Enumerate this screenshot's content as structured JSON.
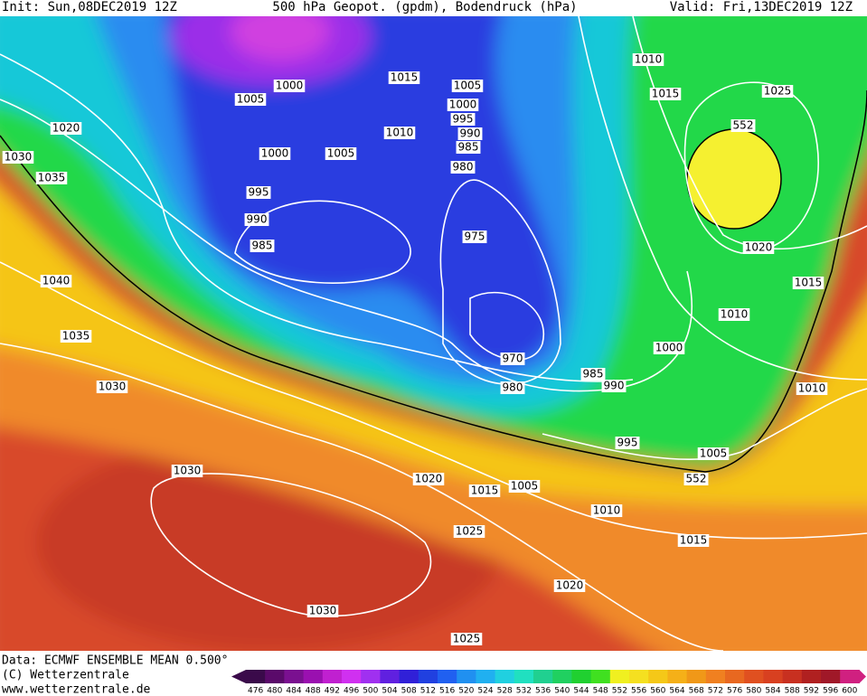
{
  "header": {
    "init": "Init: Sun,08DEC2019 12Z",
    "title": "500 hPa Geopot. (gpdm), Bodendruck (hPa)",
    "valid": "Valid: Fri,13DEC2019 12Z"
  },
  "isobar_labels": [
    1000,
    1005,
    1015,
    1005,
    1000,
    995,
    990,
    985,
    980,
    1010,
    1005,
    1000,
    1020,
    1030,
    1035,
    995,
    990,
    985,
    975,
    970,
    980,
    985,
    990,
    1000,
    1010,
    1015,
    1025,
    552,
    1020,
    1015,
    1010,
    1040,
    1035,
    1030,
    1010,
    1030,
    1020,
    1015,
    1005,
    995,
    1005,
    552,
    1010,
    1015,
    1025,
    1020,
    1030,
    1025
  ],
  "colorbar": {
    "levels": [
      476,
      480,
      484,
      488,
      492,
      496,
      500,
      504,
      508,
      512,
      516,
      520,
      524,
      528,
      532,
      536,
      540,
      544,
      548,
      552,
      556,
      560,
      564,
      568,
      572,
      576,
      580,
      584,
      588,
      592,
      596,
      600
    ],
    "colors": [
      "#3a0a4a",
      "#5a0a6a",
      "#7a1090",
      "#9a10b0",
      "#c020d0",
      "#d030f0",
      "#a030f0",
      "#6020e0",
      "#3020d8",
      "#2040e0",
      "#2060f0",
      "#2090f0",
      "#20b0f0",
      "#20d0e0",
      "#20e0c0",
      "#20d090",
      "#20d060",
      "#20d030",
      "#40e020",
      "#f0f020",
      "#f5e020",
      "#f5c818",
      "#f5b018",
      "#f09818",
      "#f08020",
      "#e86820",
      "#e05020",
      "#d84020",
      "#c83020",
      "#b02020",
      "#a01828",
      "#d02080"
    ]
  },
  "footer": {
    "data": "Data: ECMWF ENSEMBLE MEAN 0.500°",
    "copyright": "(C) Wetterzentrale",
    "url": "www.wetterzentrale.de"
  }
}
